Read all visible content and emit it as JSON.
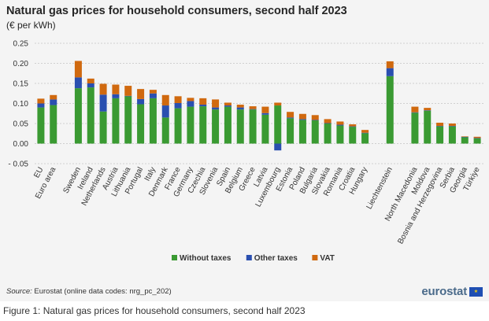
{
  "title": "Natural gas prices for household consumers, second half 2023",
  "subtitle": "(€ per kWh)",
  "source_label": "Source:",
  "source_text": "Eurostat (online data codes: nrg_pc_202)",
  "logo_text": "eurostat",
  "caption": "Figure 1: Natural gas prices for household consumers, second half 2023",
  "colors": {
    "without_taxes": "#3a9a32",
    "other_taxes": "#2a4fb0",
    "vat": "#d0690f",
    "grid": "#cfcfcf",
    "background": "#f4f4f4"
  },
  "chart_data": {
    "type": "bar",
    "stacked": true,
    "ylim": [
      -0.05,
      0.25
    ],
    "yticks": [
      -0.05,
      0.0,
      0.05,
      0.1,
      0.15,
      0.2,
      0.25
    ],
    "ytick_labels": [
      "- 0.05",
      "0.00",
      "0.05",
      "0.10",
      "0.15",
      "0.20",
      "0.25"
    ],
    "grid": true,
    "legend_position": "bottom",
    "categories": [
      "EU",
      "Euro area",
      "",
      "Sweden",
      "Ireland",
      "Netherlands",
      "Austria",
      "Lithuania",
      "Portugal",
      "Italy",
      "Denmark",
      "France",
      "Germany",
      "Czechia",
      "Slovenia",
      "Spain",
      "Belgium",
      "Greece",
      "Latvia",
      "Luxembourg",
      "Estonia",
      "Poland",
      "Bulgaria",
      "Slovakia",
      "Romania",
      "Croatia",
      "Hungary",
      "",
      "Liechtenstein",
      "",
      "North Macedonia",
      "Moldova",
      "Bosnia and Herzegovina",
      "Serbia",
      "Georgia",
      "Türkiye"
    ],
    "series": [
      {
        "name": "Without taxes",
        "values": [
          0.09,
          0.096,
          null,
          0.138,
          0.14,
          0.08,
          0.113,
          0.118,
          0.098,
          0.113,
          0.065,
          0.088,
          0.092,
          0.093,
          0.085,
          0.092,
          0.085,
          0.085,
          0.072,
          0.095,
          0.063,
          0.059,
          0.058,
          0.05,
          0.045,
          0.042,
          0.026,
          null,
          0.168,
          null,
          0.077,
          0.082,
          0.043,
          0.043,
          0.016,
          0.013
        ]
      },
      {
        "name": "Other taxes",
        "values": [
          0.01,
          0.014,
          null,
          0.027,
          0.01,
          0.042,
          0.01,
          0.001,
          0.013,
          0.012,
          0.03,
          0.013,
          0.014,
          0.004,
          0.005,
          0.003,
          0.005,
          0.001,
          0.004,
          -0.017,
          0.002,
          0.002,
          0.001,
          0.001,
          0.002,
          0.001,
          0.001,
          null,
          0.02,
          null,
          0.001,
          0.001,
          0.001,
          0.001,
          0.001,
          0.001
        ]
      },
      {
        "name": "VAT",
        "values": [
          0.012,
          0.011,
          null,
          0.041,
          0.012,
          0.027,
          0.024,
          0.025,
          0.025,
          0.009,
          0.026,
          0.017,
          0.008,
          0.016,
          0.02,
          0.007,
          0.007,
          0.007,
          0.016,
          0.007,
          0.014,
          0.013,
          0.012,
          0.01,
          0.008,
          0.005,
          0.007,
          null,
          0.017,
          null,
          0.014,
          0.006,
          0.008,
          0.006,
          0.001,
          0.003
        ]
      }
    ]
  }
}
